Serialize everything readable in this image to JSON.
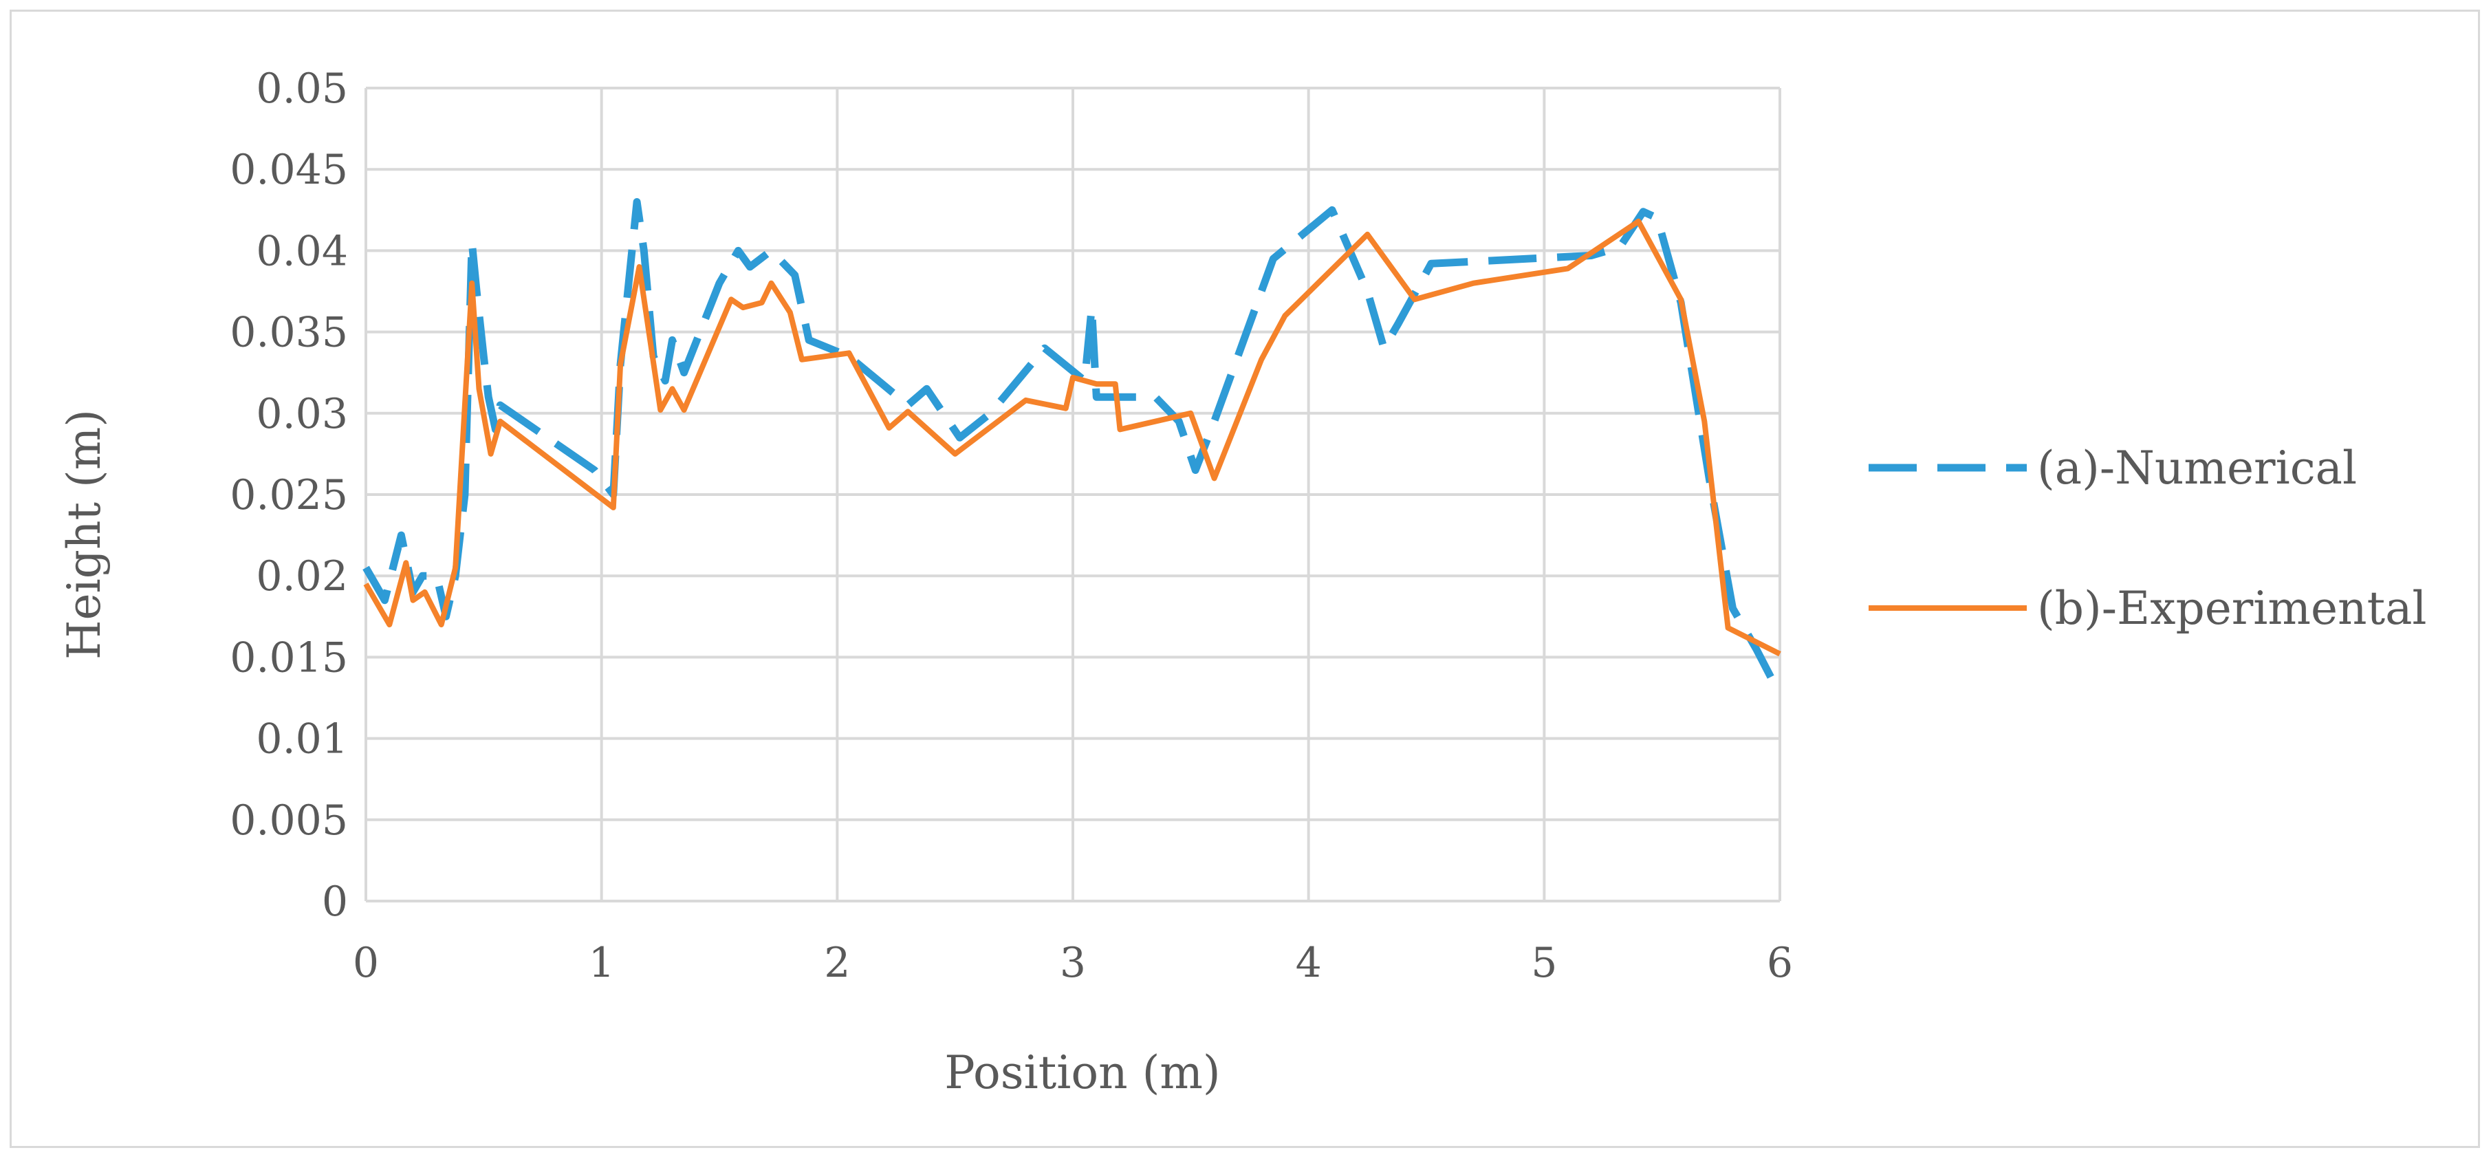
{
  "chart_data": {
    "type": "line",
    "title": "",
    "xlabel": "Position (m)",
    "ylabel": "Height (m)",
    "xlim": [
      0,
      6
    ],
    "ylim": [
      0,
      0.05
    ],
    "x_ticks": [
      0,
      1,
      2,
      3,
      4,
      5,
      6
    ],
    "x_tick_labels": [
      "0",
      "1",
      "2",
      "3",
      "4",
      "5",
      "6"
    ],
    "y_ticks": [
      0,
      0.005,
      0.01,
      0.015,
      0.02,
      0.025,
      0.03,
      0.035,
      0.04,
      0.045,
      0.05
    ],
    "y_tick_labels": [
      "0",
      "0.005",
      "0.01",
      "0.015",
      "0.02",
      "0.025",
      "0.03",
      "0.035",
      "0.04",
      "0.045",
      "0.05"
    ],
    "grid": true,
    "legend_position": "right",
    "series": [
      {
        "name": "(a)-Numerical",
        "color": "#2e9bd6",
        "line_style": "dashed",
        "points": [
          [
            0,
            0.0205
          ],
          [
            0.08,
            0.0185
          ],
          [
            0.15,
            0.0225
          ],
          [
            0.2,
            0.019
          ],
          [
            0.24,
            0.02
          ],
          [
            0.3,
            0.02
          ],
          [
            0.34,
            0.0175
          ],
          [
            0.38,
            0.02
          ],
          [
            0.42,
            0.025
          ],
          [
            0.45,
            0.0405
          ],
          [
            0.47,
            0.0375
          ],
          [
            0.5,
            0.0335
          ],
          [
            0.52,
            0.031
          ],
          [
            0.55,
            0.029
          ],
          [
            0.57,
            0.0305
          ],
          [
            0.97,
            0.0265
          ],
          [
            1.05,
            0.025
          ],
          [
            1.08,
            0.033
          ],
          [
            1.15,
            0.043
          ],
          [
            1.18,
            0.04
          ],
          [
            1.22,
            0.0335
          ],
          [
            1.27,
            0.032
          ],
          [
            1.3,
            0.0345
          ],
          [
            1.35,
            0.0325
          ],
          [
            1.5,
            0.038
          ],
          [
            1.58,
            0.04
          ],
          [
            1.63,
            0.039
          ],
          [
            1.72,
            0.04
          ],
          [
            1.82,
            0.0385
          ],
          [
            1.88,
            0.0345
          ],
          [
            2.05,
            0.0335
          ],
          [
            2.3,
            0.0305
          ],
          [
            2.38,
            0.0315
          ],
          [
            2.52,
            0.0285
          ],
          [
            2.65,
            0.03
          ],
          [
            2.88,
            0.034
          ],
          [
            3.05,
            0.032
          ],
          [
            3.08,
            0.0365
          ],
          [
            3.1,
            0.031
          ],
          [
            3.35,
            0.031
          ],
          [
            3.45,
            0.0295
          ],
          [
            3.52,
            0.0265
          ],
          [
            3.6,
            0.0295
          ],
          [
            3.85,
            0.0395
          ],
          [
            4.1,
            0.0425
          ],
          [
            4.25,
            0.0375
          ],
          [
            4.32,
            0.034
          ],
          [
            4.38,
            0.0355
          ],
          [
            4.52,
            0.0392
          ],
          [
            5.2,
            0.0397
          ],
          [
            5.27,
            0.04
          ],
          [
            5.32,
            0.0402
          ],
          [
            5.42,
            0.0424
          ],
          [
            5.48,
            0.042
          ],
          [
            5.58,
            0.0368
          ],
          [
            5.7,
            0.026
          ],
          [
            5.8,
            0.018
          ],
          [
            5.9,
            0.0155
          ],
          [
            6,
            0.0127
          ]
        ]
      },
      {
        "name": "(b)-Experimental",
        "color": "#f5822a",
        "line_style": "solid",
        "points": [
          [
            0,
            0.0195
          ],
          [
            0.1,
            0.017
          ],
          [
            0.17,
            0.0208
          ],
          [
            0.2,
            0.0185
          ],
          [
            0.25,
            0.019
          ],
          [
            0.32,
            0.017
          ],
          [
            0.38,
            0.0205
          ],
          [
            0.45,
            0.038
          ],
          [
            0.48,
            0.0315
          ],
          [
            0.53,
            0.0275
          ],
          [
            0.57,
            0.0295
          ],
          [
            1.05,
            0.0242
          ],
          [
            1.08,
            0.033
          ],
          [
            1.16,
            0.039
          ],
          [
            1.25,
            0.0302
          ],
          [
            1.3,
            0.0315
          ],
          [
            1.35,
            0.0302
          ],
          [
            1.55,
            0.037
          ],
          [
            1.6,
            0.0365
          ],
          [
            1.68,
            0.0368
          ],
          [
            1.72,
            0.038
          ],
          [
            1.8,
            0.0362
          ],
          [
            1.85,
            0.0333
          ],
          [
            2.05,
            0.0337
          ],
          [
            2.22,
            0.0291
          ],
          [
            2.3,
            0.0301
          ],
          [
            2.5,
            0.0275
          ],
          [
            2.8,
            0.0308
          ],
          [
            2.97,
            0.0303
          ],
          [
            3,
            0.0322
          ],
          [
            3.1,
            0.0318
          ],
          [
            3.18,
            0.0318
          ],
          [
            3.2,
            0.029
          ],
          [
            3.5,
            0.03
          ],
          [
            3.6,
            0.026
          ],
          [
            3.8,
            0.0333
          ],
          [
            3.9,
            0.036
          ],
          [
            4.25,
            0.041
          ],
          [
            4.45,
            0.037
          ],
          [
            4.7,
            0.038
          ],
          [
            5.1,
            0.0389
          ],
          [
            5.4,
            0.0418
          ],
          [
            5.58,
            0.037
          ],
          [
            5.68,
            0.0295
          ],
          [
            5.78,
            0.0168
          ],
          [
            6,
            0.0152
          ]
        ]
      }
    ]
  }
}
